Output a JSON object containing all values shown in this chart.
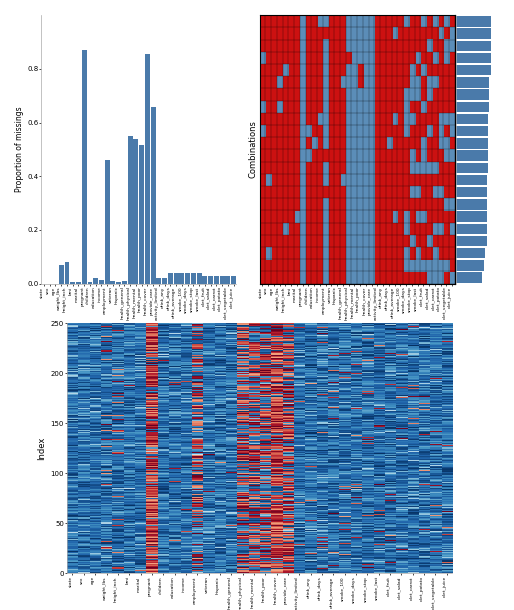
{
  "labels": [
    "state",
    "sex",
    "age",
    "weight_lbs",
    "height_inch",
    "bmi",
    "marital",
    "pregnant",
    "children",
    "education",
    "income",
    "employment",
    "veteran",
    "hispanic",
    "health_general",
    "health_physical",
    "health_mental",
    "health_poor",
    "health_cover",
    "provide_care",
    "activity_limited",
    "drink_any",
    "drink_days",
    "drink_average",
    "smoke_100",
    "smoke_days",
    "smoke_stop",
    "smoke_last",
    "diet_fruit",
    "diet_salad",
    "diet_carrot",
    "diet_potato",
    "diet_vegetable",
    "diet_juice"
  ],
  "proportions": [
    0.0,
    0.0,
    0.0,
    0.07,
    0.08,
    0.005,
    0.005,
    0.87,
    0.005,
    0.02,
    0.015,
    0.46,
    0.01,
    0.005,
    0.01,
    0.55,
    0.54,
    0.515,
    0.855,
    0.66,
    0.02,
    0.02,
    0.04,
    0.04,
    0.04,
    0.04,
    0.04,
    0.04,
    0.03,
    0.03,
    0.03,
    0.03,
    0.03,
    0.03
  ],
  "bar_color": "#4a7aaa",
  "ylabel_bar": "Proportion of missings",
  "combinations_title": "Combinations",
  "matrix_red": "#cc1111",
  "matrix_blue": "#5b8db8",
  "spine_color": "#aaaaaa",
  "background_color": "#ffffff",
  "index_ylabel": "Index",
  "n_obs": 250,
  "combo_n_rows": 22,
  "combo_n_cols": 34,
  "side_bar_max": 1.0
}
